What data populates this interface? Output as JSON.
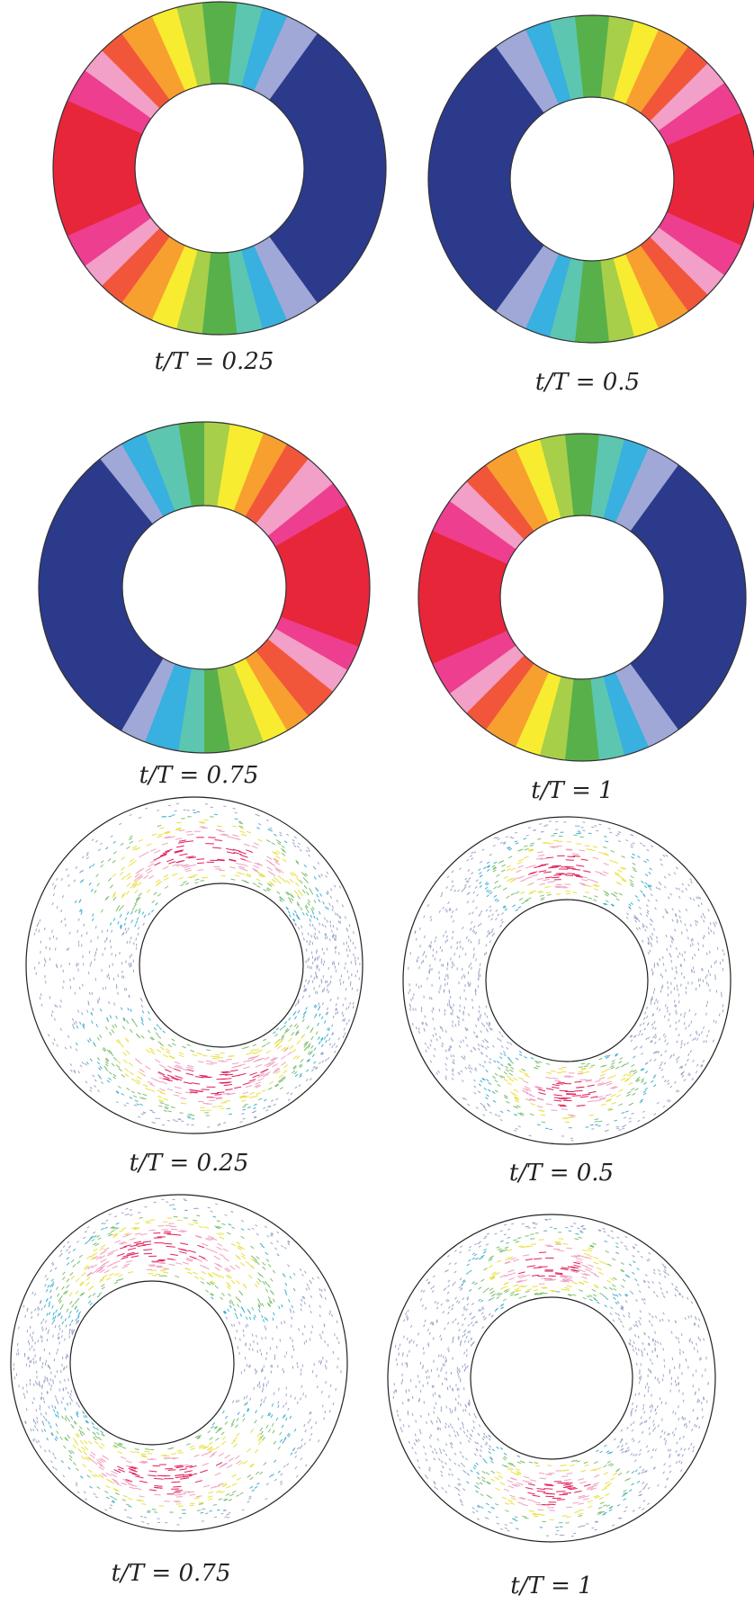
{
  "panels": [
    {
      "caption": "t/T = 0.25"
    },
    {
      "caption": "t/T = 0.5"
    },
    {
      "caption": "t/T = 0.75"
    },
    {
      "caption": "t/T = 1"
    },
    {
      "caption": "t/T = 0.25"
    },
    {
      "caption": "t/T = 0.5"
    },
    {
      "caption": "t/T = 0.75"
    },
    {
      "caption": "t/T = 1"
    }
  ]
}
